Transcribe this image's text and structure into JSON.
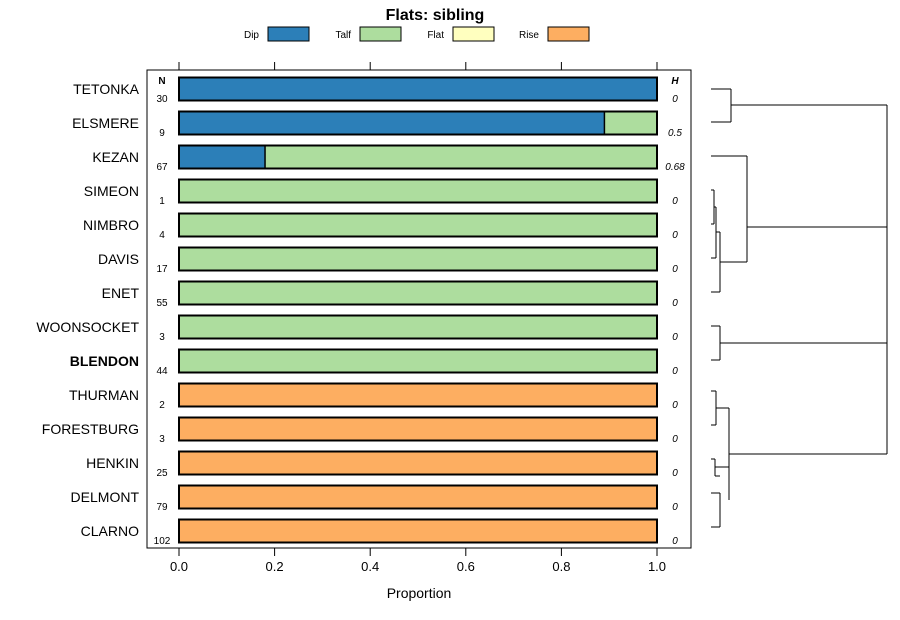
{
  "chart_data": {
    "type": "bar",
    "stacked": true,
    "orientation": "horizontal",
    "title": "Flats: sibling",
    "xlabel": "Proportion",
    "ylabel": "",
    "xlim": [
      0,
      1
    ],
    "xticks": [
      "0.0",
      "0.2",
      "0.4",
      "0.6",
      "0.8",
      "1.0"
    ],
    "legend": {
      "position": "top",
      "entries": [
        {
          "name": "Dip",
          "color": "#2c7fb8"
        },
        {
          "name": "Talf",
          "color": "#addd9e"
        },
        {
          "name": "Flat",
          "color": "#ffffbf"
        },
        {
          "name": "Rise",
          "color": "#fdae61"
        }
      ]
    },
    "n_header": "N",
    "h_header": "H",
    "highlight": "BLENDON",
    "categories": [
      "TETONKA",
      "ELSMERE",
      "KEZAN",
      "SIMEON",
      "NIMBRO",
      "DAVIS",
      "ENET",
      "WOONSOCKET",
      "BLENDON",
      "THURMAN",
      "FORESTBURG",
      "HENKIN",
      "DELMONT",
      "CLARNO"
    ],
    "n": [
      "30",
      "9",
      "67",
      "1",
      "4",
      "17",
      "55",
      "3",
      "44",
      "2",
      "3",
      "25",
      "79",
      "102"
    ],
    "h": [
      "0",
      "0.5",
      "0.68",
      "0",
      "0",
      "0",
      "0",
      "0",
      "0",
      "0",
      "0",
      "0",
      "0",
      "0"
    ],
    "series": [
      {
        "name": "Dip",
        "values": [
          1.0,
          0.89,
          0.18,
          0,
          0,
          0,
          0,
          0,
          0,
          0,
          0,
          0,
          0,
          0
        ]
      },
      {
        "name": "Talf",
        "values": [
          0,
          0.11,
          0.82,
          1,
          1,
          1,
          1,
          1,
          1,
          0,
          0,
          0,
          0,
          0
        ]
      },
      {
        "name": "Flat",
        "values": [
          0,
          0,
          0,
          0,
          0,
          0,
          0,
          0,
          0,
          0,
          0,
          0,
          0,
          0
        ]
      },
      {
        "name": "Rise",
        "values": [
          0,
          0,
          0,
          0,
          0,
          0,
          0,
          0,
          0,
          1,
          1,
          1,
          1,
          1
        ]
      }
    ],
    "dendrogram": true
  }
}
